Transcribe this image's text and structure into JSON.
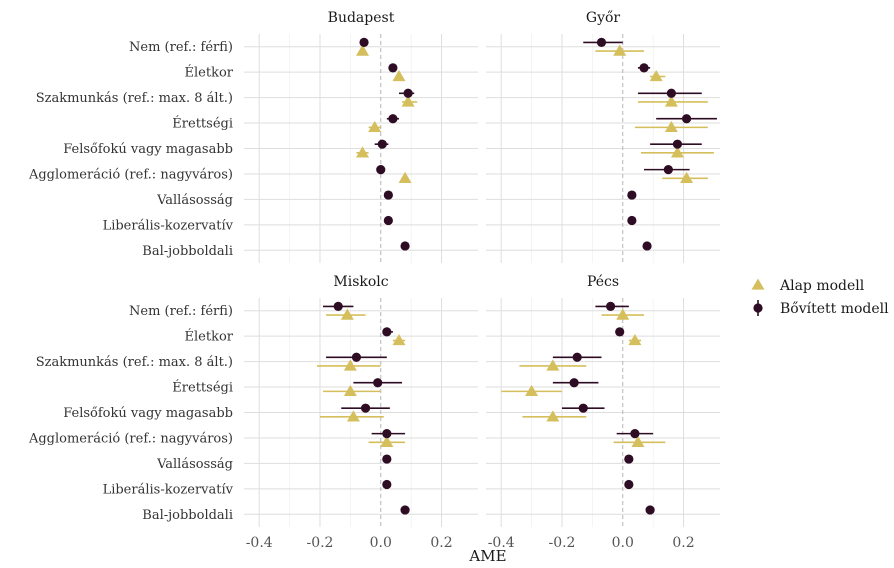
{
  "chart_data": {
    "type": "forest",
    "xlabel": "AME",
    "xlim": [
      -0.45,
      0.32
    ],
    "xticks": [
      -0.4,
      -0.2,
      0.0,
      0.2
    ],
    "x_tick_labels": [
      "-0.4",
      "-0.2",
      "0.0",
      "0.2"
    ],
    "variables": [
      "Nem (ref.: férfi)",
      "Életkor",
      "Szakmunkás (ref.: max. 8 ált.)",
      "Érettségi",
      "Felsőfokú vagy magasabb",
      "Agglomeráció (ref.: nagyváros)",
      "Vallásosság",
      "Liberális-kozervatív",
      "Bal-jobboldali"
    ],
    "legend": {
      "placement": "right",
      "entries": [
        {
          "name": "Alap modell",
          "shape": "triangle",
          "color": "#d4bf5c"
        },
        {
          "name": "Bővített modell",
          "shape": "circle",
          "color": "#2e0c24"
        }
      ]
    },
    "colors": {
      "alap": "#d4bf5c",
      "bovitett": "#2e0c24"
    },
    "panels": [
      {
        "title": "Budapest",
        "alap": [
          {
            "est": -0.06,
            "lo": -0.07,
            "hi": -0.05
          },
          {
            "est": 0.06,
            "lo": 0.05,
            "hi": 0.07
          },
          {
            "est": 0.09,
            "lo": 0.07,
            "hi": 0.12
          },
          {
            "est": -0.02,
            "lo": -0.04,
            "hi": 0.0
          },
          {
            "est": -0.06,
            "lo": -0.08,
            "hi": -0.04
          },
          {
            "est": 0.08,
            "lo": 0.07,
            "hi": 0.09
          },
          null,
          null,
          null
        ],
        "bovitett": [
          {
            "est": -0.055,
            "lo": -0.06,
            "hi": -0.05
          },
          {
            "est": 0.04,
            "lo": 0.035,
            "hi": 0.045
          },
          {
            "est": 0.09,
            "lo": 0.06,
            "hi": 0.11
          },
          {
            "est": 0.04,
            "lo": 0.02,
            "hi": 0.06
          },
          {
            "est": 0.005,
            "lo": -0.02,
            "hi": 0.025
          },
          {
            "est": 0.0,
            "lo": -0.005,
            "hi": 0.005
          },
          {
            "est": 0.025,
            "lo": 0.02,
            "hi": 0.03
          },
          {
            "est": 0.025,
            "lo": 0.02,
            "hi": 0.03
          },
          {
            "est": 0.08,
            "lo": 0.075,
            "hi": 0.085
          }
        ]
      },
      {
        "title": "Győr",
        "alap": [
          {
            "est": -0.01,
            "lo": -0.09,
            "hi": 0.07
          },
          {
            "est": 0.11,
            "lo": 0.09,
            "hi": 0.14
          },
          {
            "est": 0.16,
            "lo": 0.05,
            "hi": 0.28
          },
          {
            "est": 0.16,
            "lo": 0.04,
            "hi": 0.28
          },
          {
            "est": 0.18,
            "lo": 0.06,
            "hi": 0.3
          },
          {
            "est": 0.21,
            "lo": 0.13,
            "hi": 0.28
          },
          null,
          null,
          null
        ],
        "bovitett": [
          {
            "est": -0.07,
            "lo": -0.13,
            "hi": 0.0
          },
          {
            "est": 0.07,
            "lo": 0.05,
            "hi": 0.09
          },
          {
            "est": 0.16,
            "lo": 0.05,
            "hi": 0.26
          },
          {
            "est": 0.21,
            "lo": 0.11,
            "hi": 0.31
          },
          {
            "est": 0.18,
            "lo": 0.09,
            "hi": 0.26
          },
          {
            "est": 0.15,
            "lo": 0.07,
            "hi": 0.22
          },
          {
            "est": 0.03,
            "lo": 0.025,
            "hi": 0.035
          },
          {
            "est": 0.03,
            "lo": 0.025,
            "hi": 0.035
          },
          {
            "est": 0.08,
            "lo": 0.075,
            "hi": 0.085
          }
        ]
      },
      {
        "title": "Miskolc",
        "alap": [
          {
            "est": -0.11,
            "lo": -0.18,
            "hi": -0.05
          },
          {
            "est": 0.06,
            "lo": 0.04,
            "hi": 0.08
          },
          {
            "est": -0.1,
            "lo": -0.21,
            "hi": 0.0
          },
          {
            "est": -0.1,
            "lo": -0.19,
            "hi": 0.0
          },
          {
            "est": -0.09,
            "lo": -0.2,
            "hi": 0.01
          },
          {
            "est": 0.02,
            "lo": -0.04,
            "hi": 0.08
          },
          null,
          null,
          null
        ],
        "bovitett": [
          {
            "est": -0.14,
            "lo": -0.19,
            "hi": -0.09
          },
          {
            "est": 0.02,
            "lo": 0.01,
            "hi": 0.04
          },
          {
            "est": -0.08,
            "lo": -0.18,
            "hi": 0.02
          },
          {
            "est": -0.01,
            "lo": -0.09,
            "hi": 0.07
          },
          {
            "est": -0.05,
            "lo": -0.13,
            "hi": 0.03
          },
          {
            "est": 0.02,
            "lo": -0.03,
            "hi": 0.08
          },
          {
            "est": 0.02,
            "lo": 0.015,
            "hi": 0.025
          },
          {
            "est": 0.02,
            "lo": 0.015,
            "hi": 0.025
          },
          {
            "est": 0.08,
            "lo": 0.075,
            "hi": 0.085
          }
        ]
      },
      {
        "title": "Pécs",
        "alap": [
          {
            "est": 0.0,
            "lo": -0.07,
            "hi": 0.07
          },
          {
            "est": 0.04,
            "lo": 0.02,
            "hi": 0.06
          },
          {
            "est": -0.23,
            "lo": -0.34,
            "hi": -0.12
          },
          {
            "est": -0.3,
            "lo": -0.4,
            "hi": -0.2
          },
          {
            "est": -0.23,
            "lo": -0.33,
            "hi": -0.12
          },
          {
            "est": 0.05,
            "lo": -0.03,
            "hi": 0.14
          },
          null,
          null,
          null
        ],
        "bovitett": [
          {
            "est": -0.04,
            "lo": -0.09,
            "hi": 0.02
          },
          {
            "est": -0.01,
            "lo": -0.02,
            "hi": 0.0
          },
          {
            "est": -0.15,
            "lo": -0.23,
            "hi": -0.07
          },
          {
            "est": -0.16,
            "lo": -0.23,
            "hi": -0.08
          },
          {
            "est": -0.13,
            "lo": -0.2,
            "hi": -0.06
          },
          {
            "est": 0.04,
            "lo": -0.02,
            "hi": 0.1
          },
          {
            "est": 0.02,
            "lo": 0.015,
            "hi": 0.025
          },
          {
            "est": 0.02,
            "lo": 0.015,
            "hi": 0.025
          },
          {
            "est": 0.09,
            "lo": 0.085,
            "hi": 0.095
          }
        ]
      }
    ]
  }
}
